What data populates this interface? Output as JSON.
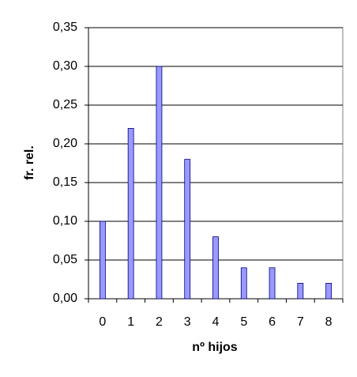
{
  "chart_data": {
    "type": "bar",
    "x_label": "nº hijos",
    "y_label": "fr. rel.",
    "categories": [
      "0",
      "1",
      "2",
      "3",
      "4",
      "5",
      "6",
      "7",
      "8"
    ],
    "values": [
      0.1,
      0.22,
      0.3,
      0.18,
      0.08,
      0.04,
      0.04,
      0.02,
      0.02
    ],
    "color": "#9999ff",
    "ylim": [
      0,
      0.35
    ],
    "yticks": [
      {
        "value": 0,
        "label": "0,00"
      },
      {
        "value": 0.05,
        "label": "0,05"
      },
      {
        "value": 0.1,
        "label": "0,10"
      },
      {
        "value": 0.15,
        "label": "0,15"
      },
      {
        "value": 0.2,
        "label": "0,20"
      },
      {
        "value": 0.25,
        "label": "0,25"
      },
      {
        "value": 0.3,
        "label": "0,30"
      },
      {
        "value": 0.35,
        "label": "0,35"
      }
    ],
    "grid": true
  }
}
